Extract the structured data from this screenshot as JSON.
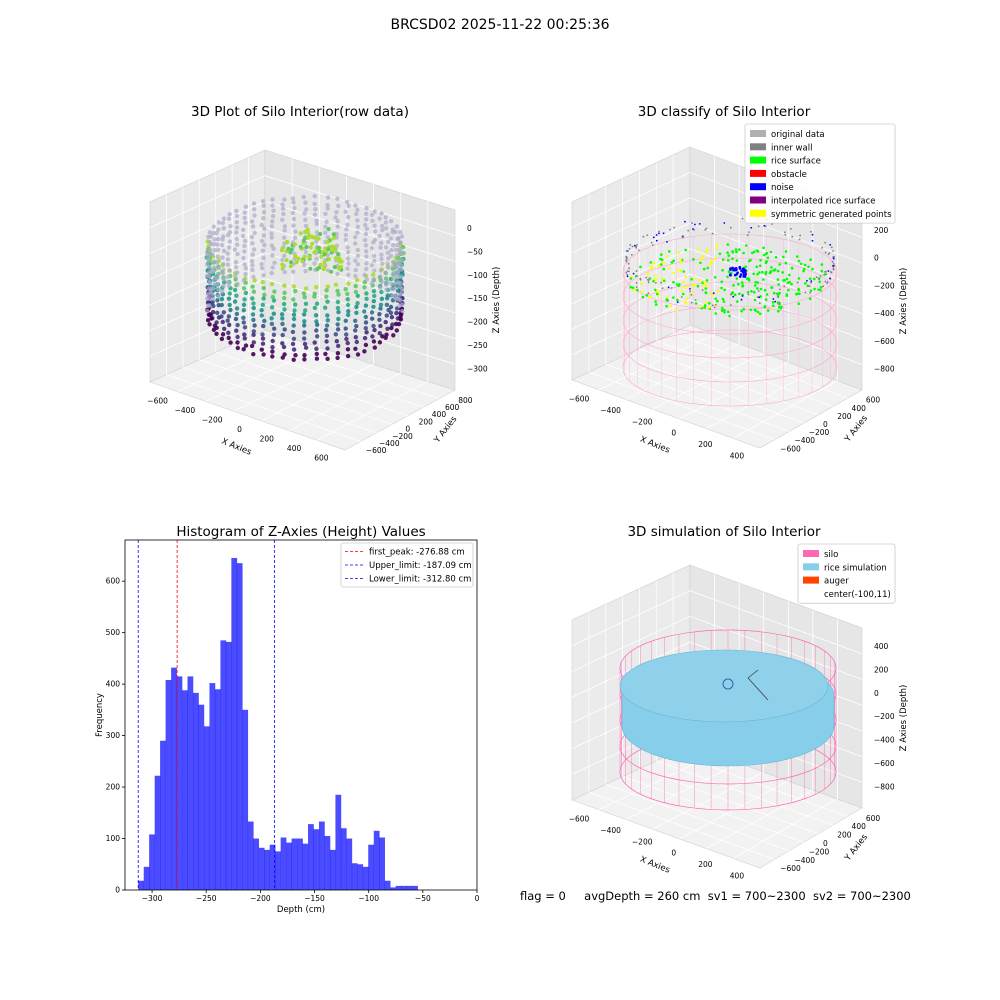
{
  "figure": {
    "suptitle": "BRCSD02 2025-11-22 00:25:36",
    "footer": {
      "flag": "flag = 0",
      "avg_depth": "avgDepth = 260 cm",
      "sv1": "sv1 = 700~2300",
      "sv2": "sv2 = 700~2300"
    }
  },
  "chart_data": [
    {
      "type": "scatter",
      "title": "3D Plot of Silo Interior(row data)",
      "xlabel": "X Axies",
      "ylabel": "Y Axies",
      "zlabel": "Z Axies (Depth)",
      "xticks": [
        "−600",
        "−400",
        "−200",
        "0",
        "200",
        "400",
        "600"
      ],
      "yticks": [
        "−600",
        "−400",
        "−200",
        "0",
        "200",
        "400",
        "600",
        "800"
      ],
      "zticks": [
        "0",
        "−50",
        "−100",
        "−150",
        "−200",
        "−250",
        "−300"
      ],
      "colormap": "viridis"
    },
    {
      "type": "scatter",
      "title": "3D classify of Silo Interior",
      "xlabel": "X Axies",
      "ylabel": "Y Axies",
      "zlabel": "Z Axies (Depth)",
      "xticks": [
        "−600",
        "−400",
        "−200",
        "0",
        "200",
        "400"
      ],
      "yticks": [
        "−600",
        "−400",
        "−200",
        "0",
        "200",
        "400",
        "600"
      ],
      "zticks": [
        "200",
        "0",
        "−200",
        "−400",
        "−600",
        "−800"
      ],
      "legend_position": "top-right",
      "legend": [
        {
          "label": "original data",
          "color": "#b0b0b0"
        },
        {
          "label": "inner wall",
          "color": "#808080"
        },
        {
          "label": "rice surface",
          "color": "#00ff00"
        },
        {
          "label": "obstacle",
          "color": "#ff0000"
        },
        {
          "label": "noise",
          "color": "#0000ff"
        },
        {
          "label": "interpolated rice surface",
          "color": "#800080"
        },
        {
          "label": "symmetric generated points",
          "color": "#ffff00"
        }
      ]
    },
    {
      "type": "bar",
      "title": "Histogram of Z-Axies (Height) Values",
      "xlabel": "Depth (cm)",
      "ylabel": "Frequency",
      "xlim": [
        -325,
        0
      ],
      "ylim": [
        0,
        680
      ],
      "xticks": [
        "−300",
        "−250",
        "−200",
        "−150",
        "−100",
        "−50",
        "0"
      ],
      "yticks": [
        "0",
        "100",
        "200",
        "300",
        "400",
        "500",
        "600"
      ],
      "bar_color": "#0000ff",
      "bin_width": 5.06,
      "bin_starts": [
        -312.8,
        -307.7,
        -302.7,
        -297.6,
        -292.6,
        -287.5,
        -282.4,
        -277.4,
        -272.3,
        -267.3,
        -262.2,
        -257.2,
        -252.1,
        -247.0,
        -242.0,
        -236.9,
        -231.9,
        -226.8,
        -221.8,
        -216.7,
        -211.6,
        -206.6,
        -201.5,
        -196.5,
        -191.4,
        -186.4,
        -181.3,
        -176.2,
        -171.2,
        -166.1,
        -161.1,
        -156.0,
        -151.0,
        -145.9,
        -140.8,
        -135.8,
        -130.7,
        -125.7,
        -120.6,
        -115.6,
        -110.5,
        -105.4,
        -100.4,
        -95.3,
        -90.3,
        -85.2,
        -80.2,
        -75.1,
        -70.0,
        -65.0,
        -59.9,
        -54.9,
        -49.8,
        -44.8,
        -39.7,
        -34.6,
        -29.6,
        -24.6,
        -19.5
      ],
      "values": [
        18,
        45,
        108,
        222,
        290,
        408,
        432,
        415,
        388,
        415,
        383,
        360,
        318,
        402,
        390,
        485,
        482,
        645,
        635,
        350,
        133,
        100,
        82,
        78,
        88,
        75,
        102,
        92,
        100,
        100,
        90,
        128,
        118,
        133,
        105,
        78,
        185,
        120,
        100,
        52,
        50,
        45,
        88,
        115,
        102,
        18,
        5,
        8,
        8,
        8,
        8,
        0,
        0,
        0,
        0,
        0,
        0,
        0,
        0
      ],
      "reference_lines": [
        {
          "label": "first_peak: -276.88 cm",
          "x": -276.88,
          "color": "#ff0000"
        },
        {
          "label": "Upper_limit: -187.09 cm",
          "x": -187.09,
          "color": "#0000ff"
        },
        {
          "label": "Lower_limit: -312.80 cm",
          "x": -312.8,
          "color": "#0000ff"
        }
      ],
      "legend_position": "top-right"
    },
    {
      "type": "scatter",
      "title": "3D simulation of Silo Interior",
      "xlabel": "X Axies",
      "ylabel": "Y Axies",
      "zlabel": "Z Axies (Depth)",
      "xticks": [
        "−600",
        "−400",
        "−200",
        "0",
        "200",
        "400"
      ],
      "yticks": [
        "−600",
        "−400",
        "−200",
        "0",
        "200",
        "400",
        "600"
      ],
      "zticks": [
        "400",
        "200",
        "0",
        "−200",
        "−400",
        "−600",
        "−800"
      ],
      "legend_position": "top-right",
      "legend": [
        {
          "label": "silo",
          "color": "#ff69b4"
        },
        {
          "label": "rice simulation",
          "color": "#87ceeb"
        },
        {
          "label": "auger",
          "color": "#ff4500"
        },
        {
          "label": "center(-100,11)",
          "color": ""
        }
      ]
    }
  ]
}
